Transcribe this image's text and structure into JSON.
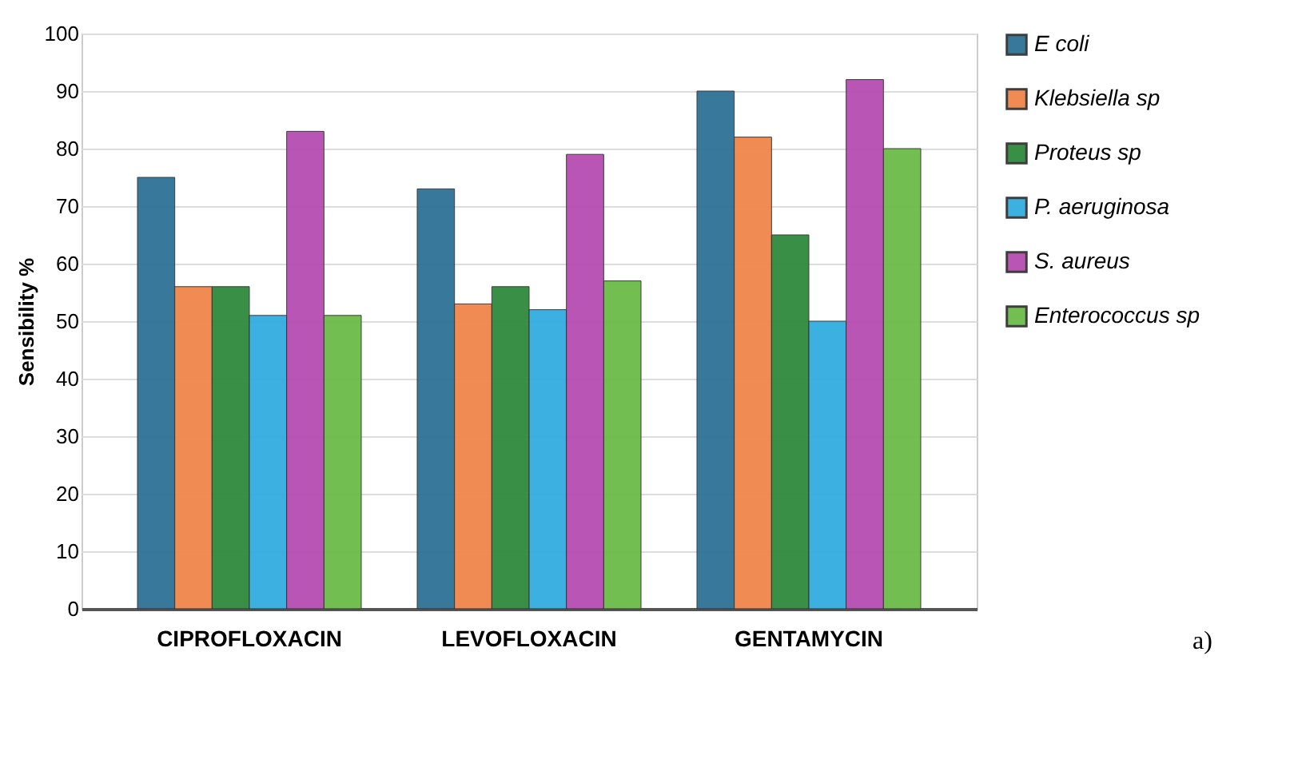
{
  "chart_data": {
    "type": "bar",
    "ylabel": "Sensibility %",
    "categories": [
      "CIPROFLOXACIN",
      "LEVOFLOXACIN",
      "GENTAMYCIN"
    ],
    "series": [
      {
        "name": "E coli",
        "color": "#2e7196",
        "values": [
          75,
          73,
          90
        ]
      },
      {
        "name": "Klebsiella sp",
        "color": "#f0864a",
        "values": [
          56,
          53,
          82
        ]
      },
      {
        "name": "Proteus sp",
        "color": "#2f8a3c",
        "values": [
          56,
          56,
          65
        ]
      },
      {
        "name": "P. aeruginosa",
        "color": "#32ade0",
        "values": [
          51,
          52,
          50
        ]
      },
      {
        "name": "S. aureus",
        "color": "#b64cb2",
        "values": [
          83,
          79,
          92
        ]
      },
      {
        "name": "Enterococcus sp",
        "color": "#6cbb47",
        "values": [
          51,
          57,
          80
        ]
      }
    ],
    "ylim": [
      0,
      100
    ],
    "yticks": [
      0,
      10,
      20,
      30,
      40,
      50,
      60,
      70,
      80,
      90,
      100
    ],
    "grid": "y",
    "legend": "right",
    "annotations": [
      "a)"
    ]
  }
}
